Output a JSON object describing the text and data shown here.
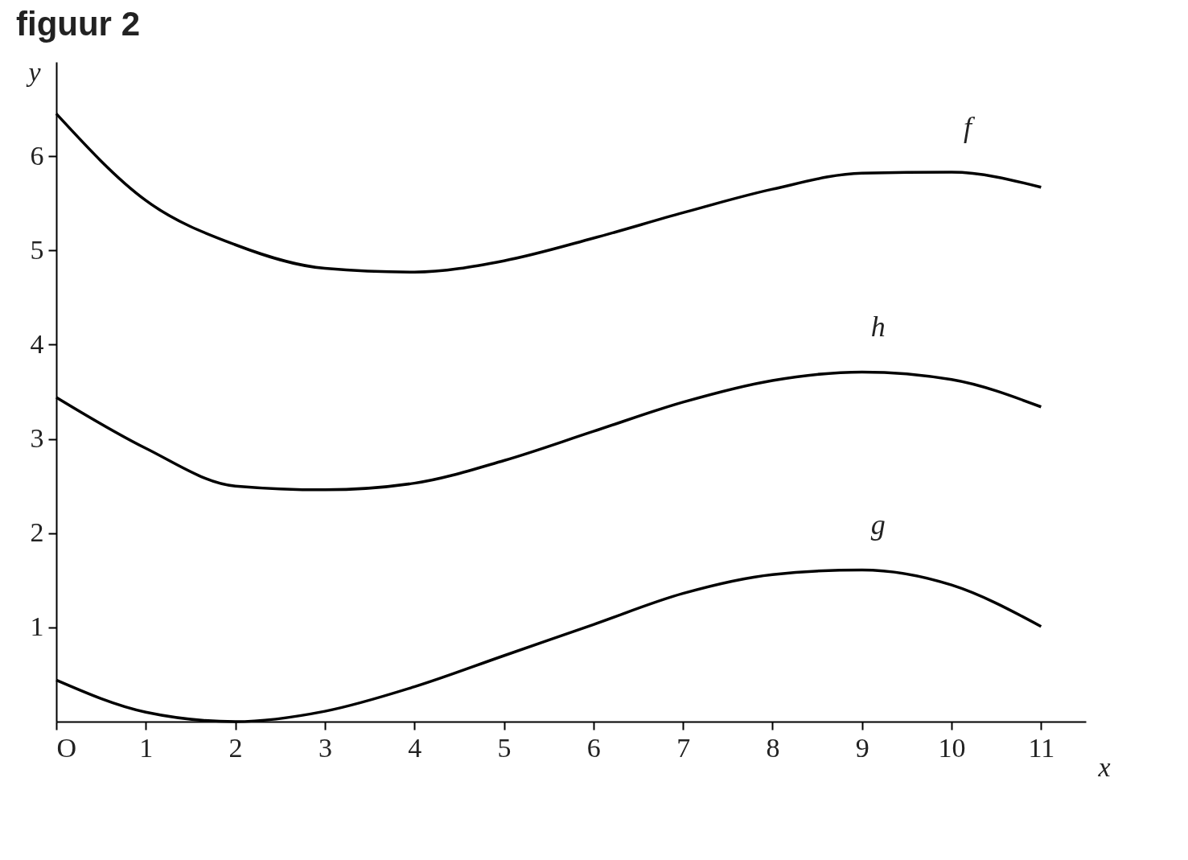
{
  "chart_data": {
    "type": "line",
    "title": "figuur 2",
    "xlabel": "x",
    "ylabel": "y",
    "x": [
      0,
      1,
      2,
      3,
      4,
      5,
      6,
      7,
      8,
      9,
      10,
      11
    ],
    "series": [
      {
        "name": "f",
        "color": "#000000",
        "values": [
          6.45,
          5.53,
          5.06,
          4.81,
          4.77,
          4.89,
          5.13,
          5.4,
          5.65,
          5.82,
          5.83,
          5.67
        ]
      },
      {
        "name": "h",
        "color": "#000000",
        "values": [
          3.44,
          2.9,
          2.5,
          2.46,
          2.53,
          2.77,
          3.08,
          3.39,
          3.62,
          3.71,
          3.63,
          3.34
        ]
      },
      {
        "name": "g",
        "color": "#000000",
        "values": [
          0.44,
          0.1,
          0.0,
          0.11,
          0.37,
          0.7,
          1.03,
          1.36,
          1.56,
          1.61,
          1.45,
          1.01
        ]
      }
    ],
    "xlim": [
      0,
      11.5
    ],
    "ylim": [
      0,
      7
    ],
    "xticks": [
      {
        "value": 0,
        "label": "O"
      },
      1,
      2,
      3,
      4,
      5,
      6,
      7,
      8,
      9,
      10,
      11
    ],
    "yticks": [
      1,
      2,
      3,
      4,
      5,
      6
    ]
  }
}
